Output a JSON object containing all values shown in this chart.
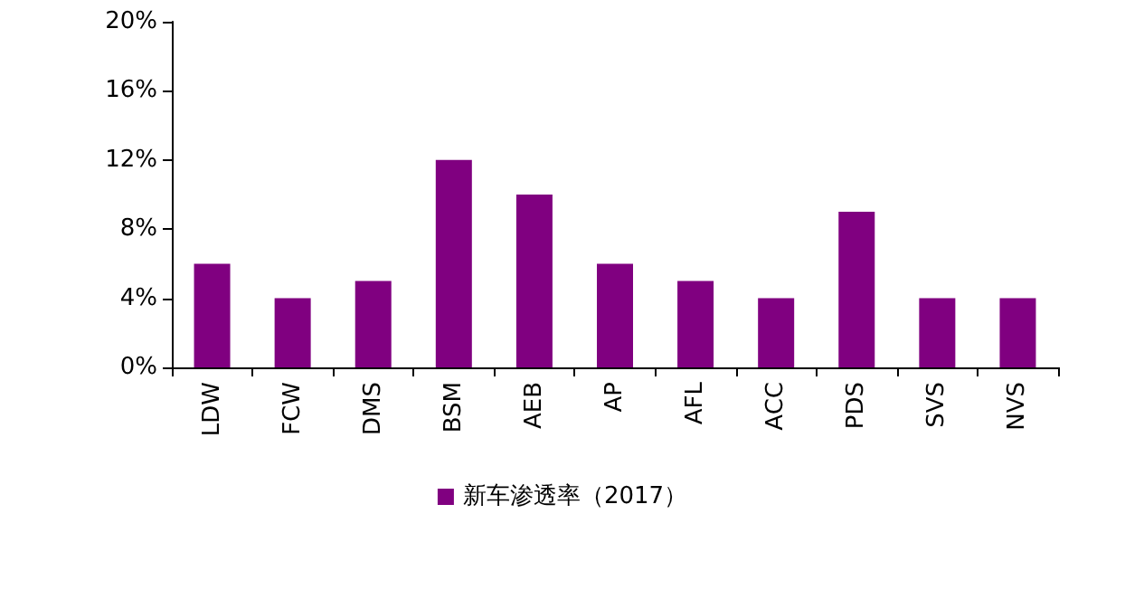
{
  "chart_data": {
    "type": "bar",
    "categories": [
      "LDW",
      "FCW",
      "DMS",
      "BSM",
      "AEB",
      "AP",
      "AFL",
      "ACC",
      "PDS",
      "SVS",
      "NVS"
    ],
    "series": [
      {
        "name": "新车渗透率（2017）",
        "color": "#800080",
        "values": [
          6,
          4,
          5,
          12,
          10,
          6,
          5,
          4,
          9,
          4,
          4
        ]
      }
    ],
    "ylim": [
      0,
      20
    ],
    "yticks": [
      {
        "value": 0,
        "label": "0%"
      },
      {
        "value": 4,
        "label": "4%"
      },
      {
        "value": 8,
        "label": "8%"
      },
      {
        "value": 12,
        "label": "12%"
      },
      {
        "value": 16,
        "label": "16%"
      },
      {
        "value": 20,
        "label": "20%"
      }
    ],
    "grid": false,
    "legend": "bottom"
  }
}
